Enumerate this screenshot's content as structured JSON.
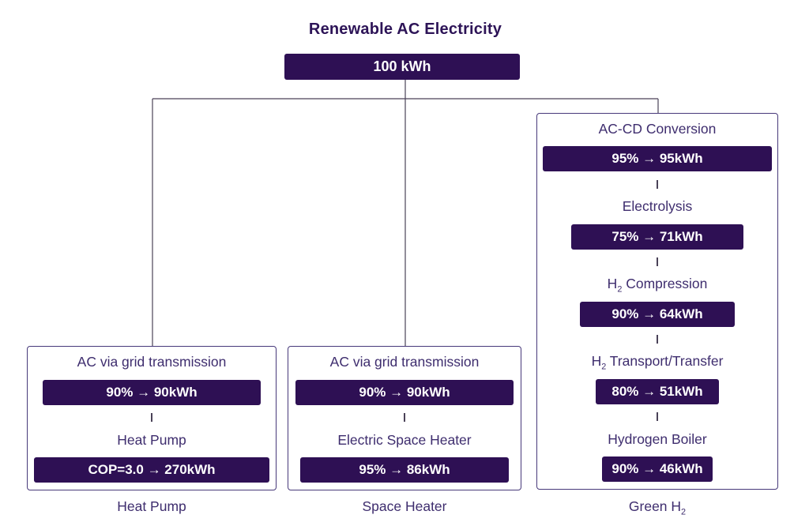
{
  "title": "Renewable AC Electricity",
  "source": {
    "value": "100 kWh",
    "kwh": 100
  },
  "colors": {
    "bar_background": "#2e1054",
    "bar_text": "#ffffff",
    "label_text": "#3e2d6e",
    "title_text": "#2d1457",
    "box_border": "#47397a",
    "connector_line": "#4a4258"
  },
  "columns": [
    {
      "footer": {
        "pre": "Heat Pump",
        "sub": "",
        "post": ""
      },
      "stages": [
        {
          "label": {
            "pre": "AC via grid transmission",
            "sub": "",
            "post": ""
          },
          "value": "90% → 90kWh",
          "kwh": 90
        },
        {
          "label": {
            "pre": "Heat Pump",
            "sub": "",
            "post": ""
          },
          "value": "COP=3.0 → 270kWh",
          "kwh": 270
        }
      ]
    },
    {
      "footer": {
        "pre": "Space Heater",
        "sub": "",
        "post": ""
      },
      "stages": [
        {
          "label": {
            "pre": "AC via grid transmission",
            "sub": "",
            "post": ""
          },
          "value": "90% → 90kWh",
          "kwh": 90
        },
        {
          "label": {
            "pre": "Electric Space Heater",
            "sub": "",
            "post": ""
          },
          "value": "95% → 86kWh",
          "kwh": 86
        }
      ]
    },
    {
      "footer": {
        "pre": "Green H",
        "sub": "2",
        "post": ""
      },
      "stages": [
        {
          "label": {
            "pre": "AC-CD Conversion",
            "sub": "",
            "post": ""
          },
          "value": "95% → 95kWh",
          "kwh": 95
        },
        {
          "label": {
            "pre": "Electrolysis",
            "sub": "",
            "post": ""
          },
          "value": "75% → 71kWh",
          "kwh": 71
        },
        {
          "label": {
            "pre": "H",
            "sub": "2",
            "post": " Compression"
          },
          "value": "90% → 64kWh",
          "kwh": 64
        },
        {
          "label": {
            "pre": "H",
            "sub": "2",
            "post": " Transport/Transfer"
          },
          "value": "80% → 51kWh",
          "kwh": 51
        },
        {
          "label": {
            "pre": "Hydrogen Boiler",
            "sub": "",
            "post": ""
          },
          "value": "90% → 46kWh",
          "kwh": 46
        }
      ]
    }
  ]
}
